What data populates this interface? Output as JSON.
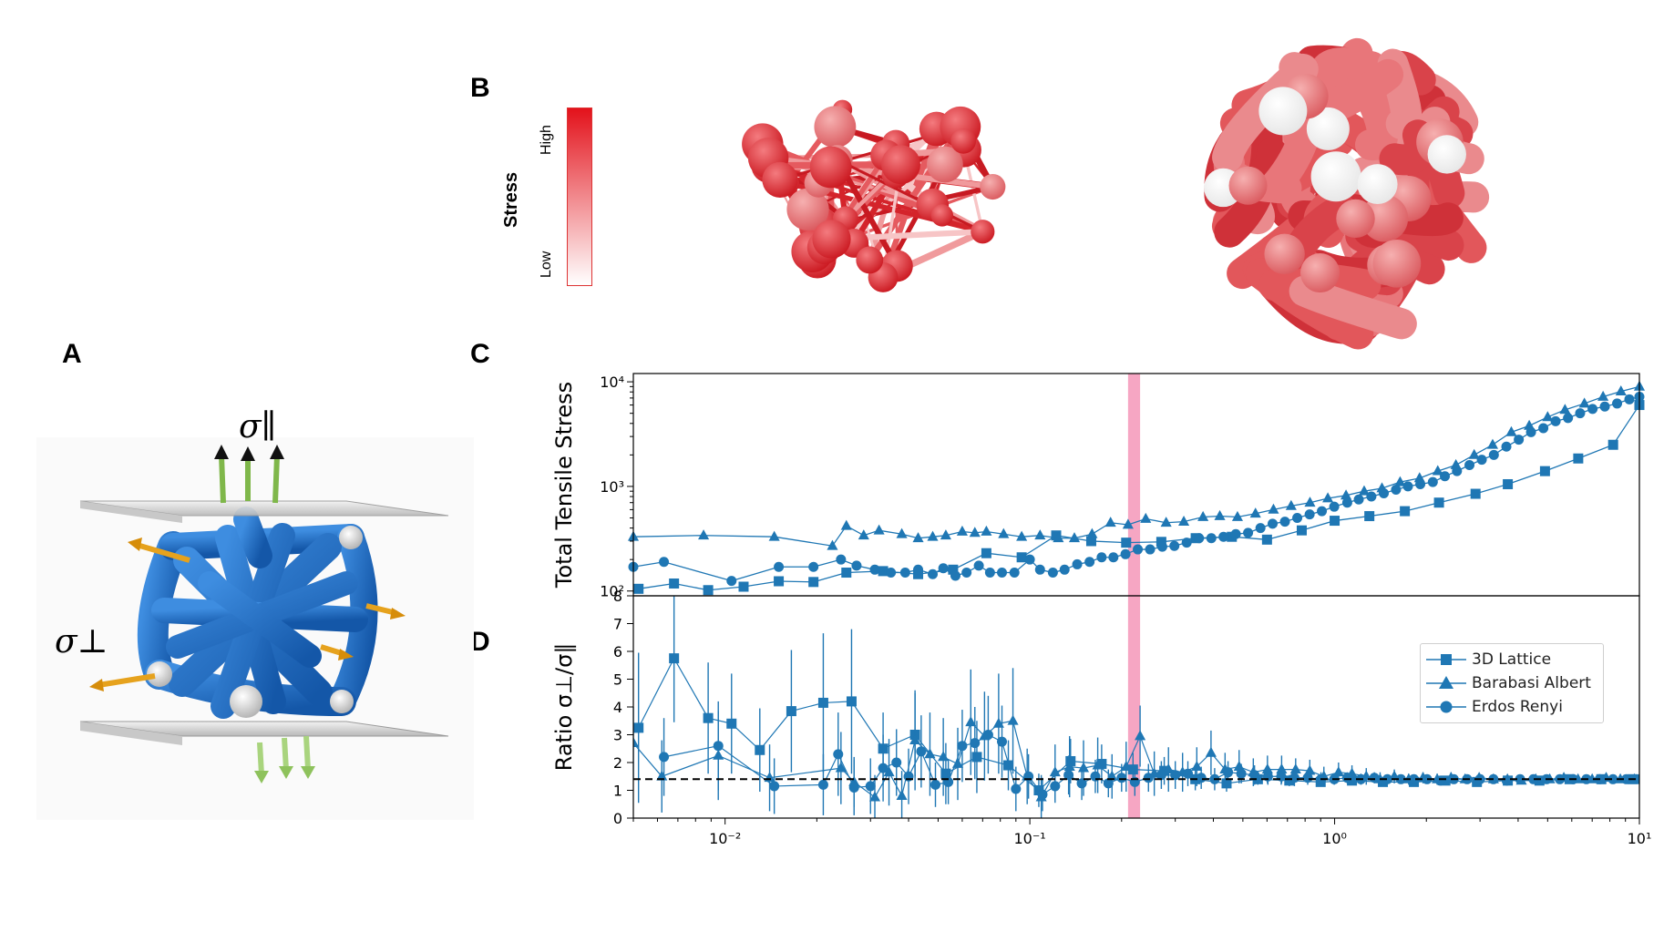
{
  "panels": {
    "a": "A",
    "b": "B",
    "c": "C",
    "d": "D"
  },
  "panel_a": {
    "sigma_parallel": "σ∥",
    "sigma_perp": "σ⊥"
  },
  "colorbar": {
    "title": "Stress",
    "high": "High",
    "low": "Low",
    "color_high": "#e3121b",
    "color_low": "#ffffff"
  },
  "colors": {
    "series": "#1f77b4",
    "highlight_band": "#f06a9b",
    "reference_line": "#000000"
  },
  "chart_data": [
    {
      "type": "line",
      "ylabel": "Total Tensile Stress",
      "xscale": "log",
      "yscale": "log",
      "xlim": [
        0.005,
        10
      ],
      "ylim": [
        90,
        12000
      ],
      "yticks": [
        {
          "value": 100,
          "label": "10²"
        },
        {
          "value": 1000,
          "label": "10³"
        },
        {
          "value": 10000,
          "label": "10⁴"
        }
      ],
      "highlight_band_x": [
        0.21,
        0.23
      ],
      "series": [
        {
          "name": "3D Lattice",
          "marker": "square",
          "x": [
            0.0052,
            0.0068,
            0.0088,
            0.0115,
            0.015,
            0.0195,
            0.025,
            0.033,
            0.043,
            0.056,
            0.072,
            0.094,
            0.122,
            0.159,
            0.207,
            0.27,
            0.35,
            0.46,
            0.6,
            0.78,
            1.0,
            1.3,
            1.7,
            2.2,
            2.9,
            3.7,
            4.9,
            6.3,
            8.2,
            10.0
          ],
          "y": [
            105,
            118,
            102,
            110,
            124,
            122,
            150,
            155,
            145,
            160,
            230,
            210,
            340,
            300,
            290,
            295,
            320,
            330,
            310,
            380,
            470,
            520,
            580,
            700,
            850,
            1050,
            1400,
            1850,
            2500,
            6000
          ]
        },
        {
          "name": "Barabasi Albert",
          "marker": "triangle",
          "x": [
            0.005,
            0.0085,
            0.0145,
            0.0225,
            0.025,
            0.0285,
            0.032,
            0.038,
            0.043,
            0.048,
            0.053,
            0.06,
            0.066,
            0.072,
            0.082,
            0.094,
            0.108,
            0.124,
            0.14,
            0.16,
            0.184,
            0.21,
            0.24,
            0.28,
            0.32,
            0.37,
            0.42,
            0.48,
            0.55,
            0.63,
            0.72,
            0.83,
            0.95,
            1.09,
            1.25,
            1.43,
            1.64,
            1.9,
            2.18,
            2.5,
            2.87,
            3.3,
            3.8,
            4.35,
            5.0,
            5.7,
            6.6,
            7.6,
            8.7,
            10.0
          ],
          "y": [
            330,
            340,
            330,
            270,
            420,
            340,
            380,
            350,
            320,
            330,
            340,
            370,
            360,
            370,
            350,
            330,
            340,
            320,
            320,
            350,
            450,
            430,
            490,
            450,
            460,
            510,
            520,
            510,
            550,
            600,
            650,
            700,
            770,
            820,
            900,
            960,
            1100,
            1200,
            1400,
            1600,
            2000,
            2500,
            3300,
            3800,
            4600,
            5400,
            6200,
            7200,
            8100,
            9000
          ]
        },
        {
          "name": "Erdos Renyi",
          "marker": "circle",
          "x": [
            0.005,
            0.0063,
            0.0105,
            0.015,
            0.0195,
            0.024,
            0.027,
            0.031,
            0.035,
            0.039,
            0.043,
            0.048,
            0.052,
            0.057,
            0.062,
            0.068,
            0.074,
            0.081,
            0.089,
            0.1,
            0.108,
            0.119,
            0.13,
            0.143,
            0.157,
            0.172,
            0.188,
            0.206,
            0.226,
            0.248,
            0.272,
            0.298,
            0.327,
            0.359,
            0.394,
            0.432,
            0.474,
            0.52,
            0.571,
            0.626,
            0.687,
            0.754,
            0.828,
            0.908,
            0.997,
            1.1,
            1.2,
            1.32,
            1.45,
            1.59,
            1.74,
            1.91,
            2.1,
            2.3,
            2.52,
            2.77,
            3.04,
            3.33,
            3.66,
            4.02,
            4.41,
            4.84,
            5.31,
            5.83,
            6.39,
            7.02,
            7.7,
            8.45,
            9.27,
            10.0
          ],
          "y": [
            170,
            190,
            125,
            170,
            170,
            200,
            175,
            160,
            150,
            150,
            160,
            145,
            165,
            140,
            150,
            175,
            150,
            150,
            150,
            200,
            160,
            150,
            160,
            180,
            190,
            210,
            210,
            225,
            250,
            250,
            265,
            270,
            290,
            320,
            320,
            330,
            350,
            360,
            400,
            440,
            460,
            500,
            540,
            580,
            640,
            700,
            750,
            800,
            860,
            930,
            1000,
            1050,
            1100,
            1250,
            1400,
            1600,
            1800,
            2000,
            2400,
            2800,
            3300,
            3600,
            4200,
            4500,
            5000,
            5500,
            5800,
            6200,
            6800,
            7200
          ]
        }
      ]
    },
    {
      "type": "line",
      "ylabel": "Ratio σ⊥/σ∥",
      "xscale": "log",
      "xlim": [
        0.005,
        10
      ],
      "ylim": [
        0,
        8
      ],
      "yticks": [
        0,
        1,
        2,
        3,
        4,
        5,
        6,
        7,
        8
      ],
      "xticks": [
        {
          "value": 0.01,
          "label": "10⁻²"
        },
        {
          "value": 0.1,
          "label": "10⁻¹"
        },
        {
          "value": 1,
          "label": "10⁰"
        },
        {
          "value": 10,
          "label": "10¹"
        }
      ],
      "reference_line_y": 1.4,
      "highlight_band_x": [
        0.21,
        0.23
      ],
      "legend": "top-right",
      "series": [
        {
          "name": "3D Lattice",
          "marker": "square",
          "x": [
            0.0052,
            0.0068,
            0.0088,
            0.0105,
            0.013,
            0.0165,
            0.021,
            0.026,
            0.033,
            0.042,
            0.053,
            0.067,
            0.085,
            0.107,
            0.136,
            0.172,
            0.218,
            0.276,
            0.349,
            0.442,
            0.56,
            0.71,
            0.9,
            1.14,
            1.44,
            1.82,
            2.31,
            2.93,
            3.7,
            4.7,
            5.9,
            7.5,
            9.5
          ],
          "y": [
            3.25,
            5.75,
            3.6,
            3.4,
            2.45,
            3.85,
            4.15,
            4.2,
            2.5,
            3.0,
            1.6,
            2.2,
            1.9,
            1.0,
            2.05,
            1.95,
            1.75,
            1.7,
            1.4,
            1.25,
            1.4,
            1.35,
            1.3,
            1.35,
            1.3,
            1.3,
            1.35,
            1.3,
            1.35,
            1.35,
            1.4,
            1.4,
            1.4
          ],
          "err": [
            2.7,
            2.3,
            2.0,
            1.8,
            1.5,
            2.2,
            2.5,
            2.6,
            1.3,
            1.5,
            1.1,
            1.3,
            0.9,
            0.6,
            0.8,
            0.7,
            0.6,
            0.5,
            0.4,
            0.3,
            0.2,
            0.2,
            0.15,
            0.15,
            0.12,
            0.12,
            0.1,
            0.1,
            0.1,
            0.1,
            0.1,
            0.1,
            0.1
          ]
        },
        {
          "name": "Barabasi Albert",
          "marker": "triangle",
          "x": [
            0.005,
            0.0062,
            0.0095,
            0.014,
            0.024,
            0.0265,
            0.031,
            0.0345,
            0.038,
            0.042,
            0.047,
            0.052,
            0.058,
            0.064,
            0.071,
            0.079,
            0.088,
            0.098,
            0.109,
            0.121,
            0.135,
            0.15,
            0.167,
            0.186,
            0.207,
            0.23,
            0.256,
            0.285,
            0.317,
            0.353,
            0.393,
            0.437,
            0.486,
            0.541,
            0.602,
            0.67,
            0.745,
            0.829,
            0.922,
            1.03,
            1.14,
            1.27,
            1.41,
            1.57,
            1.75,
            1.95,
            2.17,
            2.41,
            2.68,
            2.98,
            3.32,
            3.69,
            4.1,
            4.57,
            5.08,
            5.65,
            6.29,
            7.0,
            7.78,
            8.66,
            9.63
          ],
          "y": [
            2.7,
            1.5,
            2.25,
            1.45,
            1.8,
            1.3,
            0.75,
            1.65,
            0.8,
            2.8,
            2.3,
            2.2,
            1.95,
            3.45,
            2.95,
            3.4,
            3.5,
            1.5,
            0.75,
            1.65,
            1.85,
            1.8,
            1.9,
            1.5,
            1.85,
            2.95,
            1.6,
            1.75,
            1.65,
            1.85,
            2.35,
            1.75,
            1.85,
            1.65,
            1.75,
            1.75,
            1.75,
            1.7,
            1.5,
            1.65,
            1.6,
            1.5,
            1.4,
            1.5,
            1.4,
            1.45,
            1.4,
            1.45,
            1.4,
            1.45,
            1.4,
            1.4,
            1.35,
            1.4,
            1.4,
            1.45,
            1.4,
            1.4,
            1.45,
            1.4,
            1.4
          ],
          "err": [
            1.3,
            1.3,
            1.6,
            1.2,
            1.3,
            0.9,
            0.8,
            1.2,
            0.9,
            1.8,
            1.5,
            1.4,
            1.3,
            1.9,
            1.6,
            1.8,
            1.9,
            1.0,
            0.8,
            1.0,
            1.1,
            1.0,
            1.0,
            0.8,
            0.9,
            1.1,
            0.8,
            0.8,
            0.7,
            0.7,
            0.8,
            0.6,
            0.6,
            0.5,
            0.5,
            0.5,
            0.4,
            0.4,
            0.35,
            0.35,
            0.3,
            0.3,
            0.25,
            0.25,
            0.2,
            0.2,
            0.2,
            0.2,
            0.15,
            0.15,
            0.15,
            0.15,
            0.1,
            0.1,
            0.1,
            0.1,
            0.1,
            0.1,
            0.1,
            0.1,
            0.1
          ]
        },
        {
          "name": "Erdos Renyi",
          "marker": "circle",
          "x": [
            0.0063,
            0.0095,
            0.0145,
            0.021,
            0.0235,
            0.0265,
            0.03,
            0.033,
            0.0365,
            0.04,
            0.044,
            0.049,
            0.054,
            0.06,
            0.066,
            0.073,
            0.081,
            0.09,
            0.099,
            0.11,
            0.121,
            0.134,
            0.148,
            0.164,
            0.181,
            0.2,
            0.221,
            0.245,
            0.27,
            0.3,
            0.33,
            0.365,
            0.404,
            0.447,
            0.494,
            0.546,
            0.604,
            0.668,
            0.738,
            0.816,
            0.902,
            0.997,
            1.1,
            1.22,
            1.35,
            1.49,
            1.65,
            1.82,
            2.01,
            2.22,
            2.46,
            2.72,
            3.0,
            3.32,
            3.67,
            4.06,
            4.49,
            4.96,
            5.48,
            6.06,
            6.7,
            7.41,
            8.19,
            9.06,
            10.0
          ],
          "y": [
            2.2,
            2.6,
            1.15,
            1.2,
            2.3,
            1.1,
            1.15,
            1.8,
            2.0,
            1.5,
            2.4,
            1.2,
            1.3,
            2.6,
            2.7,
            3.0,
            2.75,
            1.05,
            1.5,
            0.85,
            1.15,
            1.55,
            1.25,
            1.5,
            1.25,
            1.45,
            1.3,
            1.45,
            1.55,
            1.55,
            1.6,
            1.45,
            1.4,
            1.65,
            1.6,
            1.55,
            1.5,
            1.5,
            1.45,
            1.45,
            1.4,
            1.4,
            1.45,
            1.4,
            1.45,
            1.4,
            1.4,
            1.4,
            1.4,
            1.35,
            1.4,
            1.4,
            1.4,
            1.4,
            1.35,
            1.4,
            1.4,
            1.4,
            1.4,
            1.4,
            1.4,
            1.4,
            1.4,
            1.4,
            1.4
          ],
          "err": [
            1.4,
            1.6,
            1.0,
            1.1,
            1.5,
            1.0,
            1.0,
            1.2,
            1.2,
            1.0,
            1.3,
            0.8,
            0.8,
            1.3,
            1.3,
            1.4,
            1.3,
            0.8,
            0.8,
            0.6,
            0.6,
            0.7,
            0.6,
            0.6,
            0.5,
            0.5,
            0.5,
            0.5,
            0.5,
            0.5,
            0.45,
            0.4,
            0.4,
            0.4,
            0.35,
            0.35,
            0.3,
            0.3,
            0.3,
            0.25,
            0.25,
            0.2,
            0.2,
            0.2,
            0.2,
            0.15,
            0.15,
            0.15,
            0.15,
            0.12,
            0.12,
            0.1,
            0.1,
            0.1,
            0.1,
            0.1,
            0.1,
            0.1,
            0.1,
            0.1,
            0.1,
            0.1,
            0.1,
            0.1,
            0.1
          ]
        }
      ]
    }
  ]
}
